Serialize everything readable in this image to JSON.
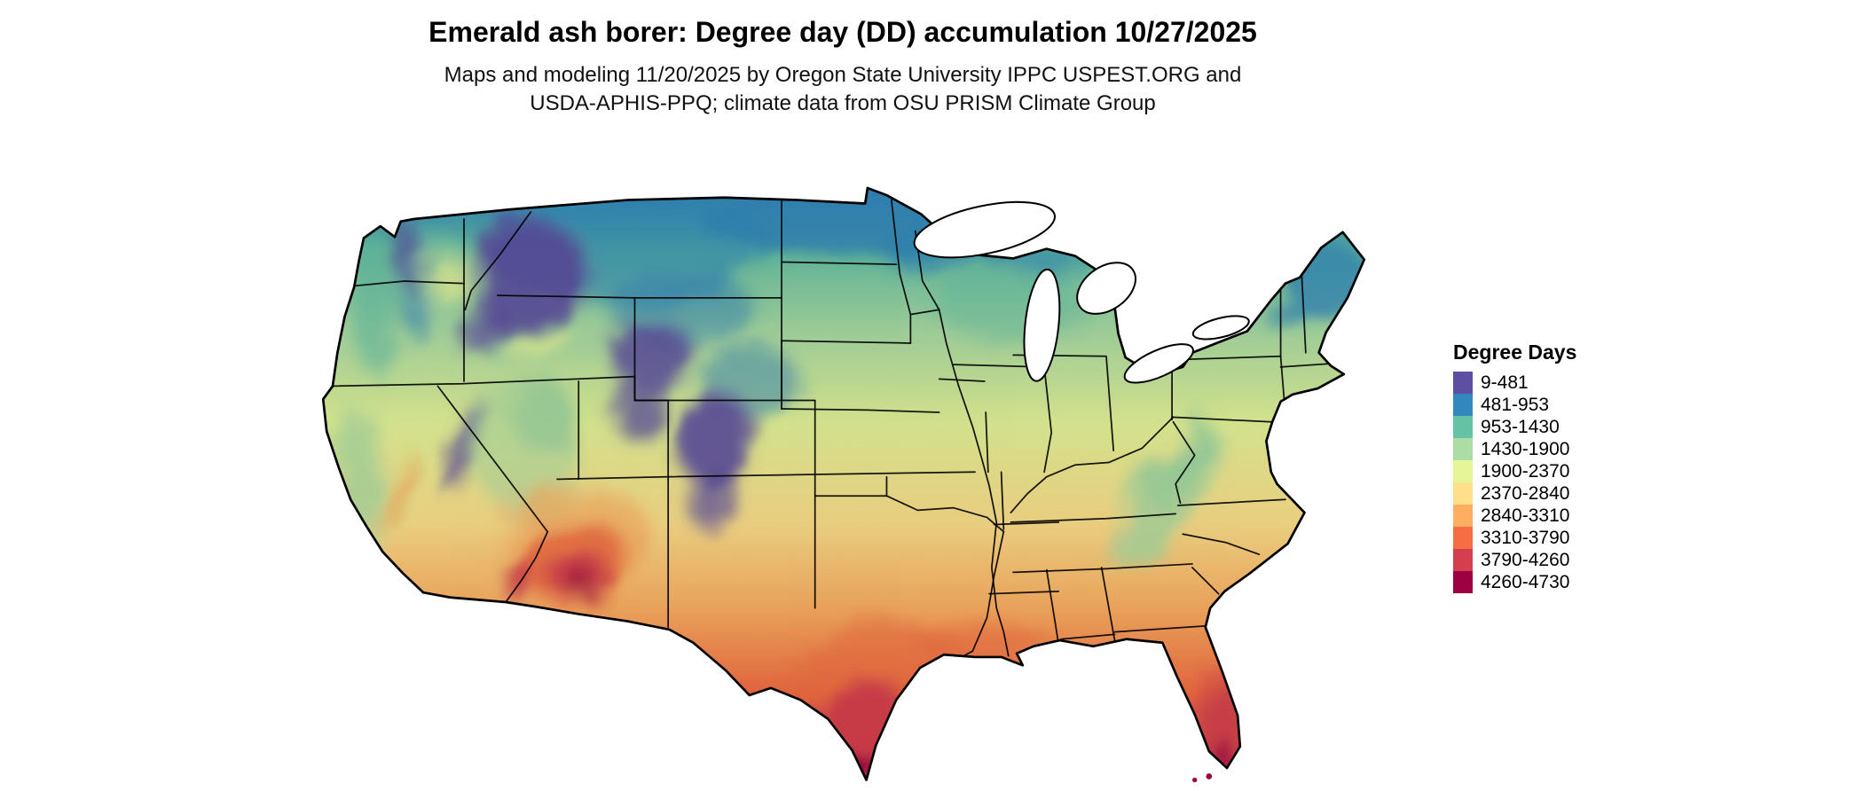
{
  "title": "Emerald ash borer: Degree day (DD) accumulation 10/27/2025",
  "subtitle_line1": "Maps and modeling 11/20/2025 by Oregon State University IPPC USPEST.ORG and",
  "subtitle_line2": "USDA-APHIS-PPQ; climate data from OSU PRISM Climate Group",
  "legend": {
    "title": "Degree Days",
    "items": [
      {
        "label": "9-481",
        "color": "#5E4FA2"
      },
      {
        "label": "481-953",
        "color": "#3288BD"
      },
      {
        "label": "953-1430",
        "color": "#66C2A5"
      },
      {
        "label": "1430-1900",
        "color": "#ABDDA4"
      },
      {
        "label": "1900-2370",
        "color": "#E6F598"
      },
      {
        "label": "2370-2840",
        "color": "#FEE08B"
      },
      {
        "label": "2840-3310",
        "color": "#FDAE61"
      },
      {
        "label": "3310-3790",
        "color": "#F46D43"
      },
      {
        "label": "3790-4260",
        "color": "#D53E4F"
      },
      {
        "label": "4260-4730",
        "color": "#9E0142"
      }
    ]
  }
}
